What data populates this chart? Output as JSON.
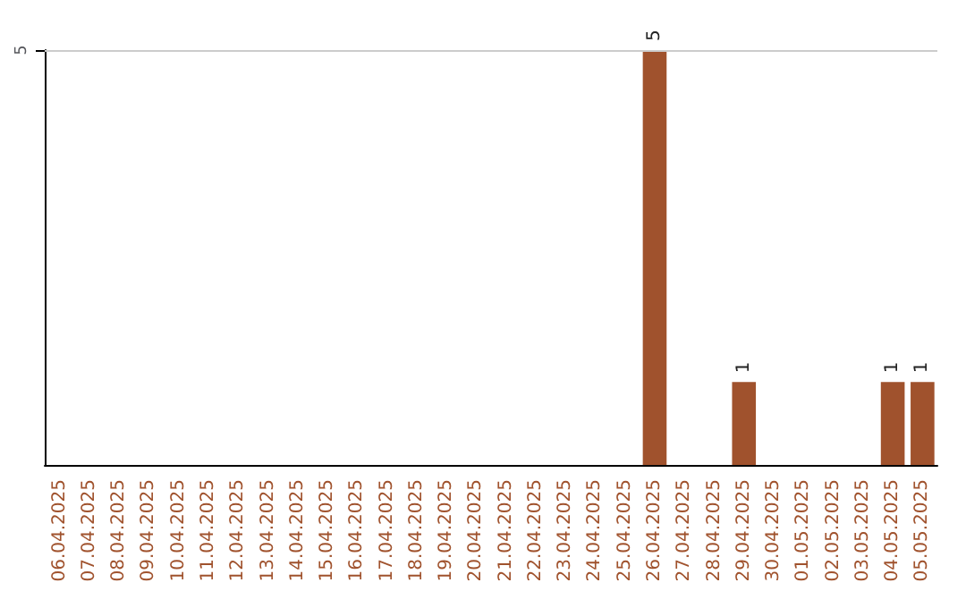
{
  "chart_data": {
    "type": "bar",
    "ylim": [
      0,
      5
    ],
    "categories": [
      "06.04.2025",
      "07.04.2025",
      "08.04.2025",
      "09.04.2025",
      "10.04.2025",
      "11.04.2025",
      "12.04.2025",
      "13.04.2025",
      "14.04.2025",
      "15.04.2025",
      "16.04.2025",
      "17.04.2025",
      "18.04.2025",
      "19.04.2025",
      "20.04.2025",
      "21.04.2025",
      "22.04.2025",
      "23.04.2025",
      "24.04.2025",
      "25.04.2025",
      "26.04.2025",
      "27.04.2025",
      "28.04.2025",
      "29.04.2025",
      "30.04.2025",
      "01.05.2025",
      "02.05.2025",
      "03.05.2025",
      "04.05.2025",
      "05.05.2025"
    ],
    "values": [
      null,
      null,
      null,
      null,
      null,
      null,
      null,
      null,
      null,
      null,
      null,
      null,
      null,
      null,
      null,
      null,
      null,
      null,
      null,
      null,
      5,
      null,
      null,
      1,
      null,
      null,
      null,
      null,
      1,
      1
    ],
    "data_labels": true,
    "color": "#a0522d",
    "yticks": [
      5
    ],
    "ref_lines": [
      {
        "axis": "y",
        "value": 5,
        "color": "#cccccc"
      }
    ]
  }
}
